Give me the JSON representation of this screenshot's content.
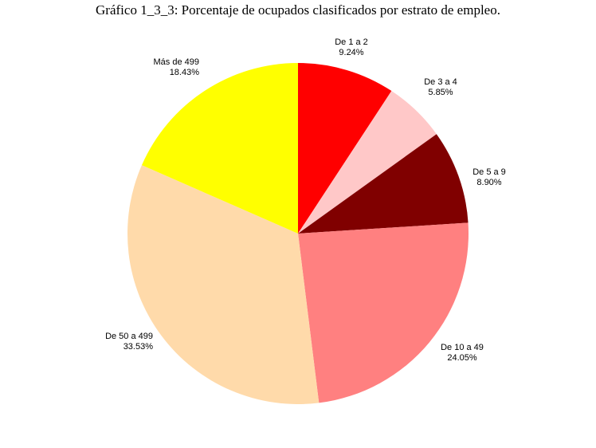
{
  "chart_data": {
    "type": "pie",
    "title": "Gráfico 1_3_3: Porcentaje de ocupados clasificados por estrato de empleo.",
    "slices": [
      {
        "label": "De 1 a 2",
        "value": 9.24,
        "value_label": "9.24%",
        "color": "#ff0000"
      },
      {
        "label": "De 3 a 4",
        "value": 5.85,
        "value_label": "5.85%",
        "color": "#ffc8c8"
      },
      {
        "label": "De 5 a 9",
        "value": 8.9,
        "value_label": "8.90%",
        "color": "#800000"
      },
      {
        "label": "De 10 a 49",
        "value": 24.05,
        "value_label": "24.05%",
        "color": "#ff8080"
      },
      {
        "label": "De 50 a 499",
        "value": 33.53,
        "value_label": "33.53%",
        "color": "#ffdaaa"
      },
      {
        "label": "Más de 499",
        "value": 18.43,
        "value_label": "18.43%",
        "color": "#ffff00"
      }
    ]
  }
}
